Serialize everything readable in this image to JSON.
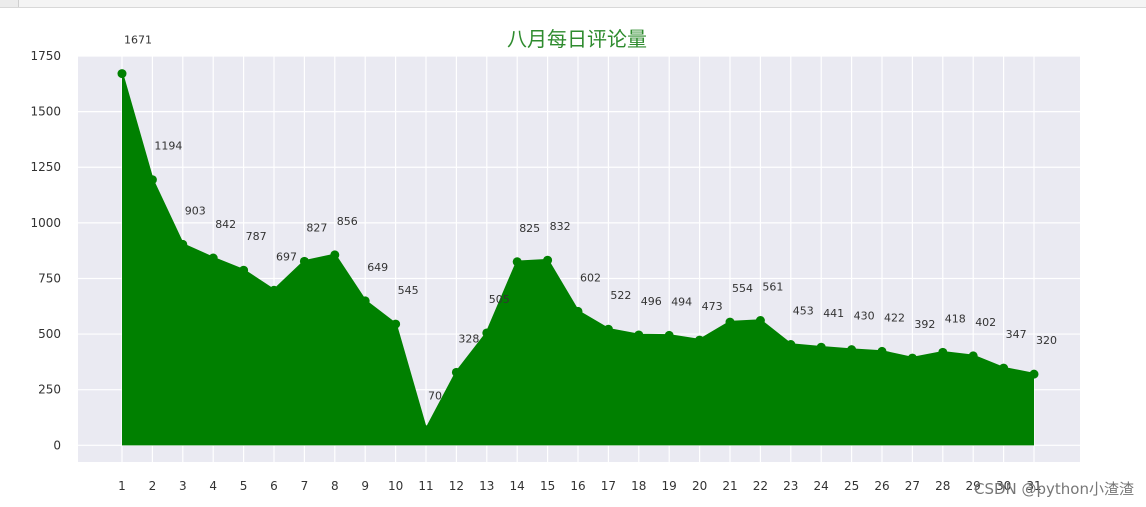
{
  "chart_data": {
    "type": "area",
    "title": "八月每日评论量",
    "xlabel": "",
    "ylabel": "",
    "categories": [
      "1",
      "2",
      "3",
      "4",
      "5",
      "6",
      "7",
      "8",
      "9",
      "10",
      "11",
      "12",
      "13",
      "14",
      "15",
      "16",
      "17",
      "18",
      "19",
      "20",
      "21",
      "22",
      "23",
      "24",
      "25",
      "26",
      "27",
      "28",
      "29",
      "30",
      "31"
    ],
    "values": [
      1671,
      1194,
      903,
      842,
      787,
      697,
      827,
      856,
      649,
      545,
      70,
      328,
      505,
      825,
      832,
      602,
      522,
      496,
      494,
      473,
      554,
      561,
      453,
      441,
      430,
      422,
      392,
      418,
      402,
      347,
      320
    ],
    "ylim": [
      -75,
      1750
    ],
    "yticks": [
      0,
      250,
      500,
      750,
      1000,
      1250,
      1500,
      1750
    ],
    "grid": true,
    "colors": {
      "fill": "#008000",
      "line": "#008000",
      "title": "#2e8b2e",
      "plot_bg": "#eaeaf2",
      "grid": "#ffffff"
    }
  },
  "watermark": "CSDN @python小渣渣"
}
